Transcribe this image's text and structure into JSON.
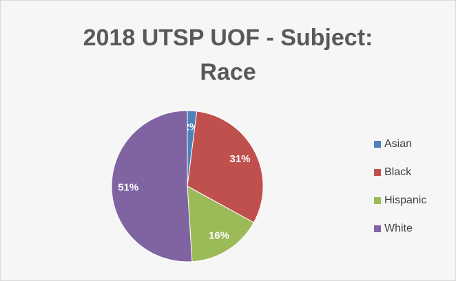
{
  "chart_data": {
    "type": "pie",
    "title": "2018 UTSP UOF - Subject: Race",
    "categories": [
      "Asian",
      "Black",
      "Hispanic",
      "White"
    ],
    "values": [
      2,
      31,
      16,
      51
    ],
    "value_labels": [
      "2%",
      "31%",
      "16%",
      "51%"
    ],
    "colors": [
      "#4f81bd",
      "#c0504d",
      "#9bbb59",
      "#8064a2"
    ],
    "legend": "right"
  }
}
